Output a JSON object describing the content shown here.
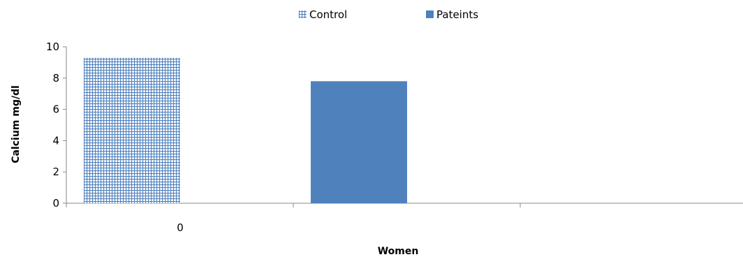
{
  "chart_data": {
    "type": "bar",
    "title": "",
    "xlabel": "Women",
    "ylabel": "Calcium  mg/dl",
    "ylim": [
      0,
      10
    ],
    "yticks": [
      0,
      2,
      4,
      6,
      8,
      10
    ],
    "categories": [
      "0",
      "",
      ""
    ],
    "series": [
      {
        "name": "Control",
        "category_index": 0,
        "value": 9.3,
        "fill": "pattern-grid",
        "color": "#4f81bd"
      },
      {
        "name": "Pateints",
        "category_index": 1,
        "value": 7.8,
        "fill": "solid",
        "color": "#4f81bd"
      }
    ],
    "legend_position": "top-center",
    "grid": false
  },
  "colors": {
    "axis": "#888888",
    "bar": "#4f81bd",
    "background": "#ffffff"
  }
}
